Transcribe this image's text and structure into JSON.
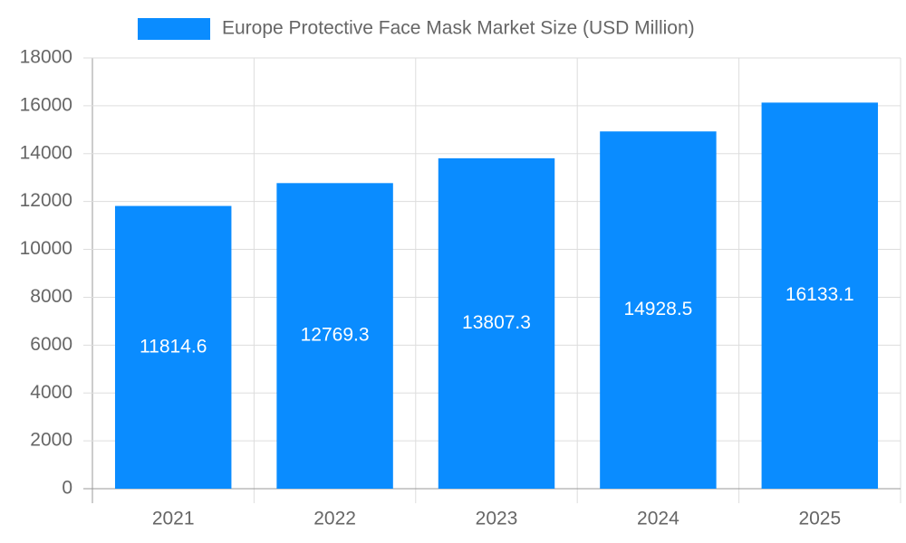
{
  "chart_data": {
    "type": "bar",
    "categories": [
      "2021",
      "2022",
      "2023",
      "2024",
      "2025"
    ],
    "series": [
      {
        "name": "Europe Protective Face Mask Market Size (USD Million)",
        "color": "#0a8cff",
        "values": [
          11814.6,
          12769.3,
          13807.3,
          14928.5,
          16133.1
        ]
      }
    ],
    "ylim": [
      0,
      18000
    ],
    "yticks": [
      0,
      2000,
      4000,
      6000,
      8000,
      10000,
      12000,
      14000,
      16000,
      18000
    ],
    "grid": true,
    "legend": "top",
    "data_labels": true
  }
}
